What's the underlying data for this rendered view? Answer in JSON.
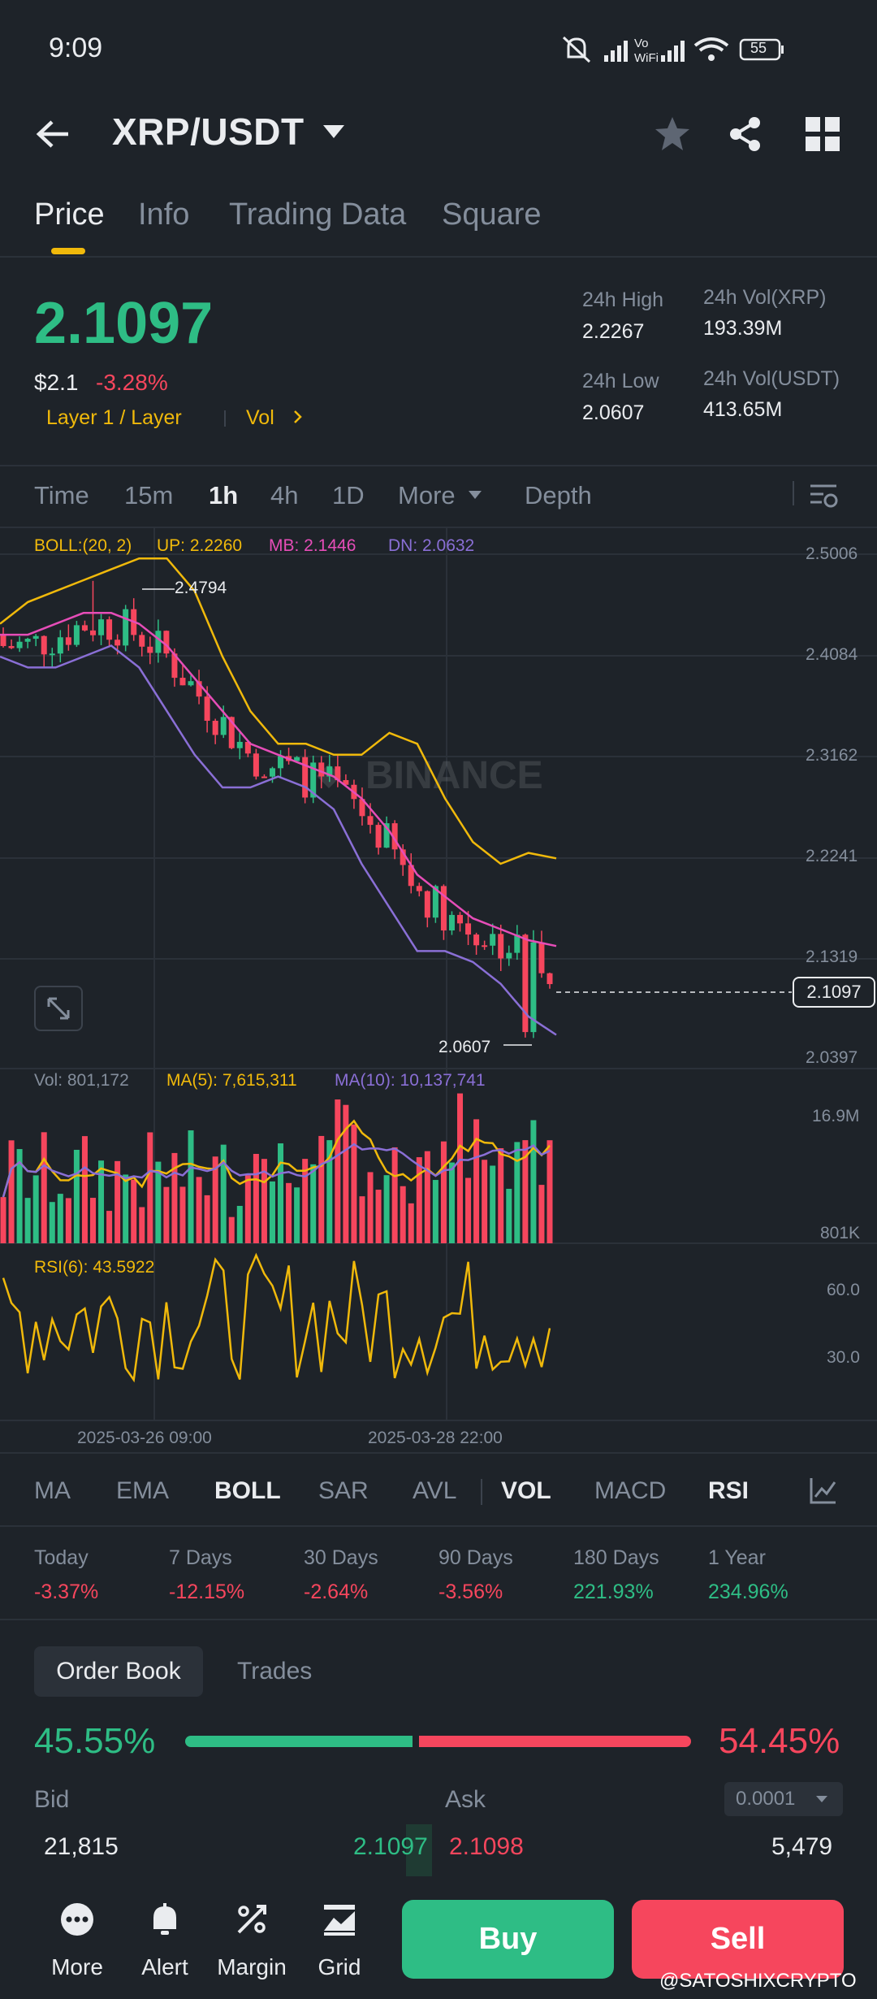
{
  "status_bar": {
    "time": "9:09",
    "battery": "55"
  },
  "header": {
    "pair": "XRP/USDT"
  },
  "tabs": [
    "Price",
    "Info",
    "Trading Data",
    "Square"
  ],
  "price": {
    "last": "2.1097",
    "usd": "$2.1",
    "change_pct": "-3.28%",
    "tag_layer": "Layer 1 / Layer",
    "tag_vol": "Vol"
  },
  "stats": {
    "high_label": "24h High",
    "high": "2.2267",
    "low_label": "24h Low",
    "low": "2.0607",
    "vol_base_label": "24h Vol(XRP)",
    "vol_base": "193.39M",
    "vol_quote_label": "24h Vol(USDT)",
    "vol_quote": "413.65M"
  },
  "intervals": [
    "Time",
    "15m",
    "1h",
    "4h",
    "1D",
    "More",
    "Depth"
  ],
  "chart": {
    "boll_label": "BOLL:(20, 2)",
    "boll_up": "UP: 2.2260",
    "boll_mb": "MB: 2.1446",
    "boll_dn": "DN: 2.0632",
    "price_axis": [
      "2.5006",
      "2.4084",
      "2.3162",
      "2.2241",
      "2.1319",
      "2.0397"
    ],
    "current_price_tag": "2.1097",
    "high_marker": "2.4794",
    "low_marker": "2.0607",
    "vol_label": "Vol: 801,172",
    "vol_ma5": "MA(5): 7,615,311",
    "vol_ma10": "MA(10): 10,137,741",
    "vol_axis": [
      "16.9M",
      "801K"
    ],
    "rsi_label": "RSI(6): 43.5922",
    "rsi_axis": [
      "60.0",
      "30.0"
    ],
    "time_axis": [
      "2025-03-26 09:00",
      "2025-03-28 22:00"
    ],
    "watermark": "BINANCE"
  },
  "chart_data": {
    "type": "candlestick",
    "series": [
      {
        "name": "BOLL UP",
        "values": [
          2.44,
          2.46,
          2.47,
          2.48,
          2.49,
          2.5,
          2.5,
          2.47,
          2.41,
          2.36,
          2.33,
          2.33,
          2.32,
          2.32,
          2.34,
          2.33,
          2.28,
          2.24,
          2.22,
          2.23,
          2.225
        ]
      },
      {
        "name": "BOLL MB",
        "values": [
          2.43,
          2.43,
          2.44,
          2.45,
          2.45,
          2.44,
          2.42,
          2.39,
          2.36,
          2.33,
          2.32,
          2.31,
          2.3,
          2.28,
          2.25,
          2.21,
          2.19,
          2.17,
          2.16,
          2.15,
          2.1446
        ]
      },
      {
        "name": "BOLL DN",
        "values": [
          2.41,
          2.4,
          2.4,
          2.41,
          2.42,
          2.4,
          2.36,
          2.32,
          2.29,
          2.29,
          2.3,
          2.29,
          2.27,
          2.22,
          2.18,
          2.14,
          2.14,
          2.13,
          2.11,
          2.08,
          2.0632
        ]
      }
    ],
    "ylim": [
      2.0397,
      2.5006
    ],
    "high": 2.4794,
    "low": 2.0607,
    "last": 2.1097
  },
  "indicator_tabs": [
    "MA",
    "EMA",
    "BOLL",
    "SAR",
    "AVL",
    "VOL",
    "MACD",
    "RSI"
  ],
  "performance": [
    {
      "label": "Today",
      "value": "-3.37%",
      "dir": "down"
    },
    {
      "label": "7 Days",
      "value": "-12.15%",
      "dir": "down"
    },
    {
      "label": "30 Days",
      "value": "-2.64%",
      "dir": "down"
    },
    {
      "label": "90 Days",
      "value": "-3.56%",
      "dir": "down"
    },
    {
      "label": "180 Days",
      "value": "221.93%",
      "dir": "up"
    },
    {
      "label": "1 Year",
      "value": "234.96%",
      "dir": "up"
    }
  ],
  "order_book": {
    "tab_label": "Order Book",
    "trades_label": "Trades",
    "bid_pct": "45.55%",
    "ask_pct": "54.45%",
    "bid_fraction": 0.4555,
    "bid_label": "Bid",
    "ask_label": "Ask",
    "precision": "0.0001",
    "bid_qty": "21,815",
    "bid_price": "2.1097",
    "ask_price": "2.1098",
    "ask_qty": "5,479"
  },
  "bottom_nav": {
    "more": "More",
    "alert": "Alert",
    "margin": "Margin",
    "grid": "Grid",
    "buy": "Buy",
    "sell": "Sell"
  },
  "watermark_handle": "@SATOSHIXCRYPTO",
  "colors": {
    "up": "#2ebd85",
    "down": "#f6465d",
    "accent": "#f0b90b",
    "bg": "#1e2329"
  }
}
